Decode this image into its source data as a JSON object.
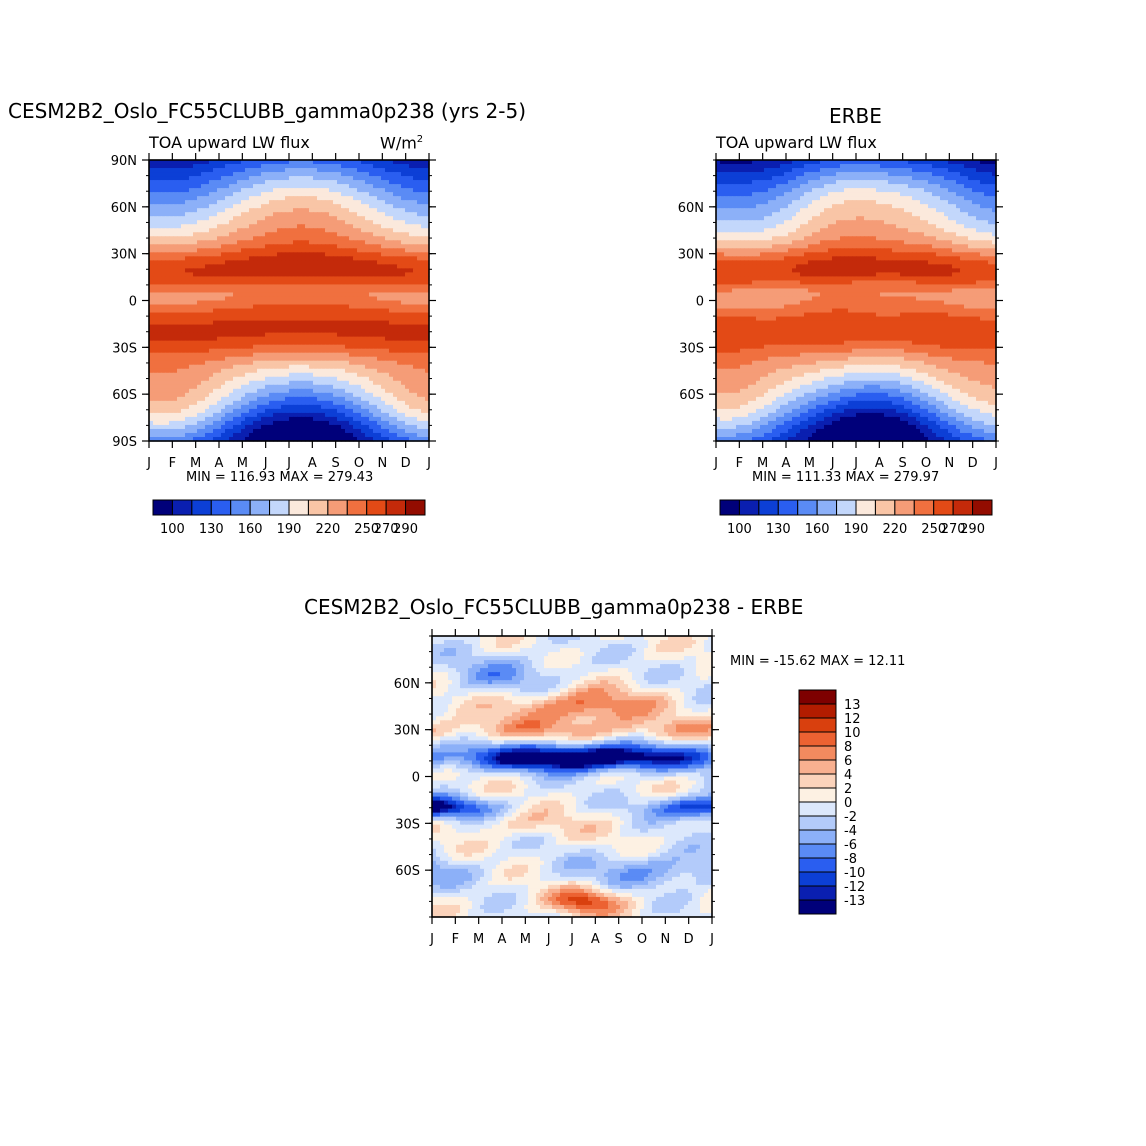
{
  "chart_data": [
    {
      "type": "heatmap",
      "id": "model",
      "title": "CESM2B2_Oslo_FC55CLUBB_gamma0p238 (yrs 2-5)",
      "subtitle_left": "TOA upward LW flux",
      "units": "W/m",
      "units_exp": "2",
      "xlabel": "",
      "ylabel": "",
      "x_ticks": [
        "J",
        "F",
        "M",
        "A",
        "M",
        "J",
        "J",
        "A",
        "S",
        "O",
        "N",
        "D",
        "J"
      ],
      "y_ticks": [
        "90N",
        "60N",
        "30N",
        "0",
        "30S",
        "60S",
        "90S"
      ],
      "y_range": [
        -90,
        90
      ],
      "minmax": "MIN = 116.93  MAX = 279.43",
      "colorbar_labels": [
        "100",
        "130",
        "160",
        "190",
        "220",
        "250",
        "270",
        "290"
      ]
    },
    {
      "type": "heatmap",
      "id": "obs",
      "title": "ERBE",
      "subtitle_left": "TOA upward LW flux",
      "x_ticks": [
        "J",
        "F",
        "M",
        "A",
        "M",
        "J",
        "J",
        "A",
        "S",
        "O",
        "N",
        "D",
        "J"
      ],
      "y_ticks": [
        "60N",
        "30N",
        "0",
        "30S",
        "60S"
      ],
      "y_range": [
        -90,
        90
      ],
      "minmax": "MIN = 111.33  MAX = 279.97",
      "colorbar_labels": [
        "100",
        "130",
        "160",
        "190",
        "220",
        "250",
        "270",
        "290"
      ]
    },
    {
      "type": "heatmap",
      "id": "diff",
      "title": "CESM2B2_Oslo_FC55CLUBB_gamma0p238 - ERBE",
      "x_ticks": [
        "J",
        "F",
        "M",
        "A",
        "M",
        "J",
        "J",
        "A",
        "S",
        "O",
        "N",
        "D",
        "J"
      ],
      "y_ticks": [
        "60N",
        "30N",
        "0",
        "30S",
        "60S"
      ],
      "y_range": [
        -90,
        90
      ],
      "minmax": "MIN = -15.62 MAX =   12.11",
      "colorbar_labels": [
        "13",
        "12",
        "10",
        "8",
        "6",
        "4",
        "2",
        "0",
        "-2",
        "-4",
        "-6",
        "-8",
        "-10",
        "-12",
        "-13"
      ]
    }
  ],
  "palettes": {
    "flux": [
      "#00007a",
      "#0a1fb0",
      "#0c3fd6",
      "#2a5ef0",
      "#5a8bf5",
      "#8cb0f8",
      "#c3d7fb",
      "#fbe9dc",
      "#f9c5a6",
      "#f59c77",
      "#f0703f",
      "#e34a16",
      "#c42a0a",
      "#930c00"
    ],
    "diff": [
      "#00007a",
      "#0a1fb0",
      "#0c3fd6",
      "#2a5ef0",
      "#5a8bf5",
      "#8cb0f8",
      "#b3cbfa",
      "#dce8fc",
      "#fdf1e3",
      "#fbd3bb",
      "#f8b090",
      "#f38a5f",
      "#ec6232",
      "#d9400e",
      "#b21c00",
      "#7e0000"
    ]
  }
}
